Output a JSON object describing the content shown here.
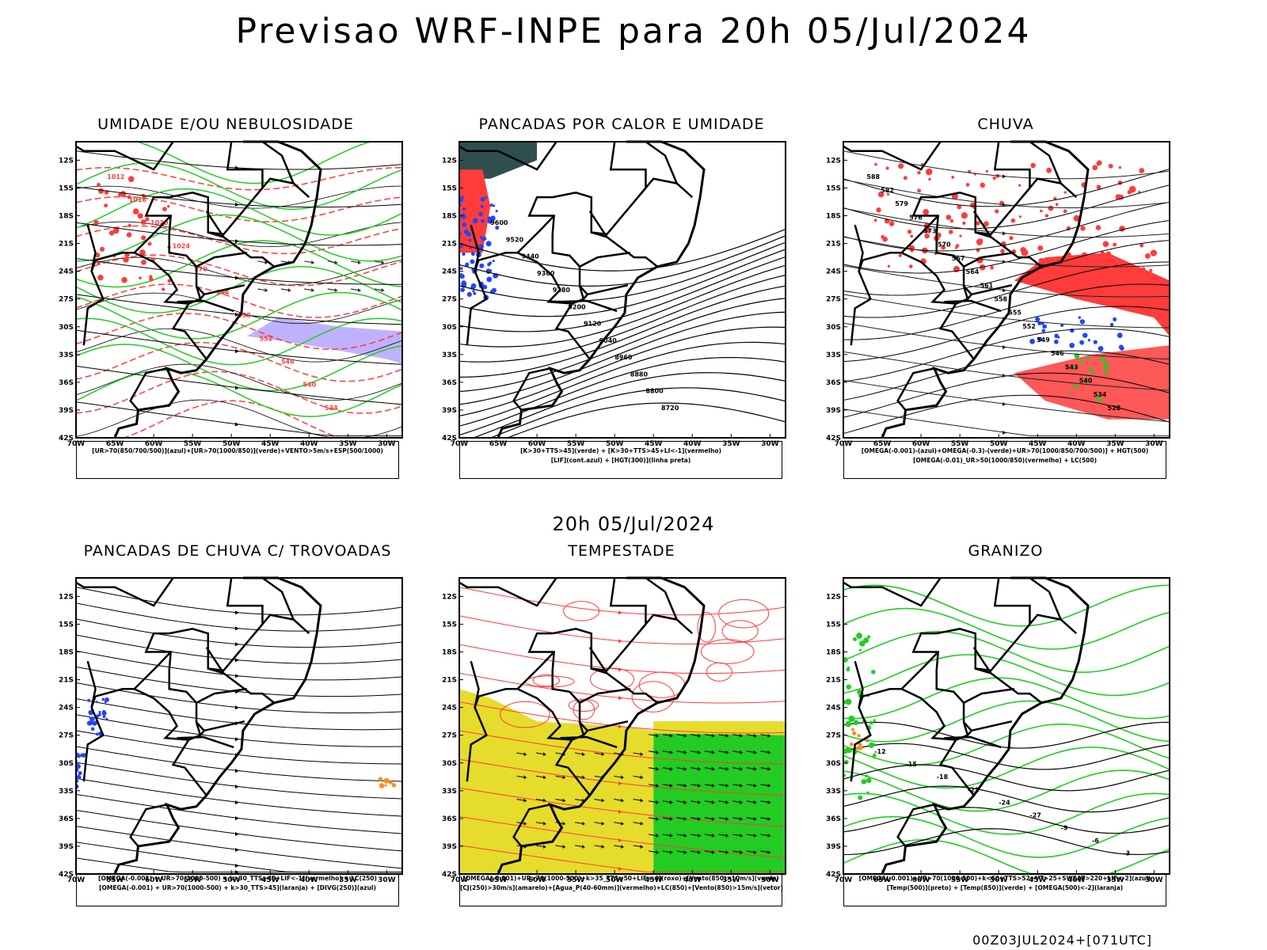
{
  "header": {
    "title": "Previsao WRF-INPE  para 20h 05/Jul/2024"
  },
  "subtitle": "20h 05/Jul/2024",
  "footer": "00Z03JUL2024+[071UTC]",
  "axes": {
    "lat_labels": [
      "12S",
      "15S",
      "18S",
      "21S",
      "24S",
      "27S",
      "30S",
      "33S",
      "36S",
      "39S",
      "42S"
    ],
    "lon_labels": [
      "70W",
      "65W",
      "60W",
      "55W",
      "50W",
      "45W",
      "40W",
      "35W",
      "30W"
    ]
  },
  "colors": {
    "red": "#ff3b3b",
    "green": "#22cc22",
    "blue": "#2244ff",
    "yellow": "#e6dc2c",
    "orange": "#ff8c1a",
    "purple": "#b9a9ff"
  },
  "panels": [
    {
      "id": "umidade",
      "title": "UMIDADE E/OU NEBULOSIDADE",
      "legend": [
        "[UR>70(850/700/500)](azul)+[UR>70(1000/850)](verde)+VENTO>5m/s+ESP(500/1000)"
      ],
      "contour_labels": [
        "1012",
        "1016",
        "1020",
        "1024",
        "570",
        "564",
        "558",
        "552",
        "546",
        "540",
        "534"
      ]
    },
    {
      "id": "pancadas-calor",
      "title": "PANCADAS POR CALOR E UMIDADE",
      "legend": [
        "[K>30+TTS>45](verde) + [K>30+TTS>45+LI<-1](vermelho)",
        "[LIF](cont.azul) + [HGT(300)](linha preta)"
      ],
      "contour_labels": [
        "9600",
        "9520",
        "9440",
        "9360",
        "9280",
        "9200",
        "9120",
        "9040",
        "8960",
        "8880",
        "8800",
        "8720"
      ]
    },
    {
      "id": "chuva",
      "title": "CHUVA",
      "legend": [
        "[OMEGA(-0.001)-(azul)+OMEGA(-0.3)-(verde)+UR>70(1000/850/700/500)] + HGT(500)",
        "[OMEGA(-0.01)_UR>50(1000/850)(vermelho) + LC(500)"
      ],
      "contour_labels": [
        "588",
        "582",
        "579",
        "576",
        "573",
        "570",
        "567",
        "564",
        "561",
        "558",
        "555",
        "552",
        "549",
        "546",
        "543",
        "540",
        "534",
        "528"
      ]
    },
    {
      "id": "trovoadas",
      "title": "PANCADAS DE CHUVA C/ TROVOADAS",
      "legend": [
        "[OMEGA(-0.001) + UR>70(1000-500) + k>30_TTS>45+LIF<-1](vermelho) + LC(250)",
        "[OMEGA(-0.001) + UR>70(1000-500) + k>30_TTS>45](laranja) + [DIVG(250)](azul)"
      ],
      "contour_labels": []
    },
    {
      "id": "tempestade",
      "title": "TEMPESTADE",
      "legend": [
        "[OMEGA(-0.001)+UR>70(1000-500)+k>35_TTS>50+LIF<-4](roxo)+[Vento(850)>10m/s](verde)",
        "[CJ(250)>30m/s](amarelo)+[Agua_P(40-60mm)](vermelho)+LC(850)+[Vento(850)>15m/s](vetor)"
      ],
      "contour_labels": []
    },
    {
      "id": "granizo",
      "title": "GRANIZO",
      "legend": [
        "[OMEGA(-0.001)+UR>70(1000-500)+k<60+TTS>52+VT>25+SWEAT>220+LIF<-2](azul)",
        "[Temp(500)](preto) + [Temp(850)](verde) + [OMEGA(500)<-2](laranja)"
      ],
      "contour_labels": [
        "-12",
        "-15",
        "-18",
        "-21",
        "-24",
        "-27",
        "-9",
        "-6",
        "-3"
      ]
    }
  ]
}
